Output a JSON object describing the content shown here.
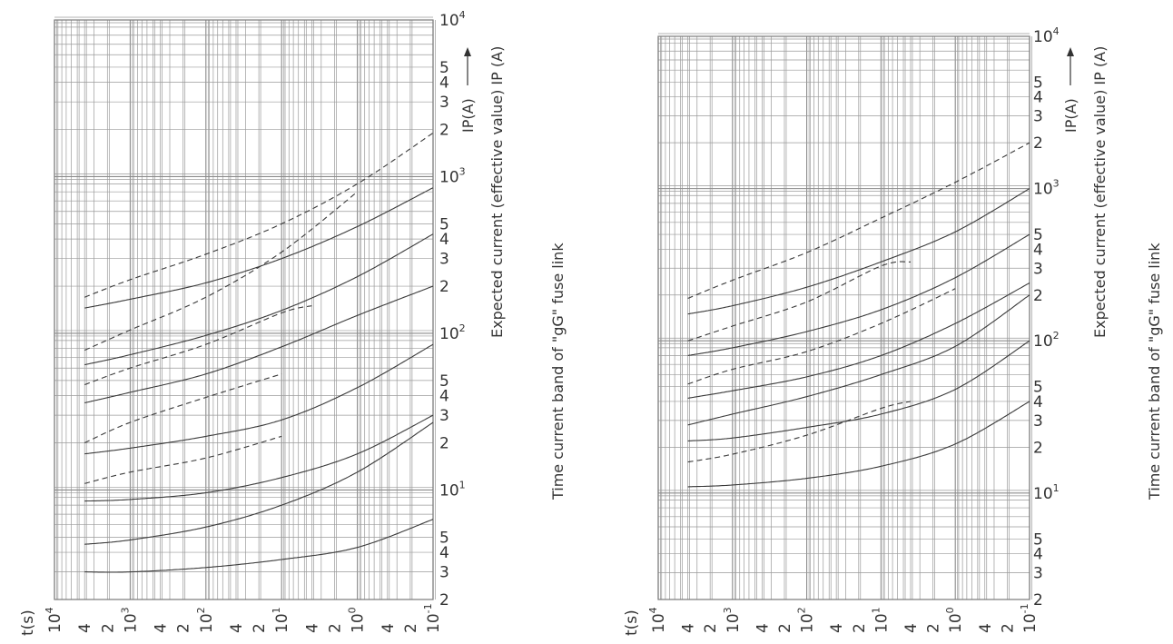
{
  "chart_data": [
    {
      "type": "line",
      "title": "Time current band of \"gG\" fuse link",
      "xlabel": "t(s)",
      "ylabel": "Expected current (effective value) IP (A)",
      "ylabel_arrow": "IP(A)",
      "x_scale": "log",
      "x_reversed": true,
      "xlim": [
        10000,
        0.1
      ],
      "y_scale": "log",
      "ylim": [
        2,
        10000
      ],
      "x_ticks": [
        {
          "v": 10000,
          "m": "10",
          "e": "4"
        },
        {
          "v": 4000,
          "m": "4",
          "e": ""
        },
        {
          "v": 2000,
          "m": "2",
          "e": ""
        },
        {
          "v": 1000,
          "m": "10",
          "e": "3"
        },
        {
          "v": 400,
          "m": "4",
          "e": ""
        },
        {
          "v": 200,
          "m": "2",
          "e": ""
        },
        {
          "v": 100,
          "m": "10",
          "e": "2"
        },
        {
          "v": 40,
          "m": "4",
          "e": ""
        },
        {
          "v": 20,
          "m": "2",
          "e": ""
        },
        {
          "v": 10,
          "m": "10",
          "e": "1"
        },
        {
          "v": 4,
          "m": "4",
          "e": ""
        },
        {
          "v": 2,
          "m": "2",
          "e": ""
        },
        {
          "v": 1,
          "m": "10",
          "e": "0"
        },
        {
          "v": 0.4,
          "m": "4",
          "e": ""
        },
        {
          "v": 0.2,
          "m": "2",
          "e": ""
        },
        {
          "v": 0.1,
          "m": "10",
          "e": "-1"
        }
      ],
      "y_ticks": [
        {
          "v": 10000,
          "m": "10",
          "e": "4"
        },
        {
          "v": 5000,
          "m": "5",
          "e": ""
        },
        {
          "v": 4000,
          "m": "4",
          "e": ""
        },
        {
          "v": 3000,
          "m": "3",
          "e": ""
        },
        {
          "v": 2000,
          "m": "2",
          "e": ""
        },
        {
          "v": 1000,
          "m": "10",
          "e": "3"
        },
        {
          "v": 500,
          "m": "5",
          "e": ""
        },
        {
          "v": 400,
          "m": "4",
          "e": ""
        },
        {
          "v": 300,
          "m": "3",
          "e": ""
        },
        {
          "v": 200,
          "m": "2",
          "e": ""
        },
        {
          "v": 100,
          "m": "10",
          "e": "2"
        },
        {
          "v": 50,
          "m": "5",
          "e": ""
        },
        {
          "v": 40,
          "m": "4",
          "e": ""
        },
        {
          "v": 30,
          "m": "3",
          "e": ""
        },
        {
          "v": 20,
          "m": "2",
          "e": ""
        },
        {
          "v": 10,
          "m": "10",
          "e": "1"
        },
        {
          "v": 5,
          "m": "5",
          "e": ""
        },
        {
          "v": 4,
          "m": "4",
          "e": ""
        },
        {
          "v": 3,
          "m": "3",
          "e": ""
        },
        {
          "v": 2,
          "m": "2",
          "e": ""
        }
      ],
      "series": [
        {
          "style": "dashed",
          "x": [
            4000,
            1000,
            100,
            10,
            1,
            0.1
          ],
          "y": [
            170,
            220,
            320,
            500,
            900,
            1900
          ]
        },
        {
          "style": "solid",
          "x": [
            4000,
            1000,
            100,
            10,
            1,
            0.1
          ],
          "y": [
            145,
            165,
            210,
            300,
            480,
            850
          ]
        },
        {
          "style": "dashed",
          "x": [
            4000,
            1000,
            100,
            10,
            1
          ],
          "y": [
            78,
            105,
            170,
            330,
            800
          ]
        },
        {
          "style": "solid",
          "x": [
            4000,
            1000,
            100,
            10,
            1,
            0.1
          ],
          "y": [
            63,
            73,
            97,
            140,
            230,
            430
          ]
        },
        {
          "style": "dashed",
          "x": [
            4000,
            1000,
            100,
            10,
            4
          ],
          "y": [
            47,
            60,
            85,
            135,
            150
          ]
        },
        {
          "style": "solid",
          "x": [
            4000,
            1000,
            100,
            10,
            1,
            0.1
          ],
          "y": [
            36,
            42,
            55,
            82,
            130,
            200
          ]
        },
        {
          "style": "dashed",
          "x": [
            4000,
            1000,
            100,
            10
          ],
          "y": [
            20,
            27,
            39,
            55
          ]
        },
        {
          "style": "solid",
          "x": [
            4000,
            1000,
            100,
            10,
            1,
            0.1
          ],
          "y": [
            17,
            18.5,
            22,
            28,
            45,
            85
          ]
        },
        {
          "style": "dashed",
          "x": [
            4000,
            1000,
            100,
            10
          ],
          "y": [
            11,
            13,
            16,
            22
          ]
        },
        {
          "style": "solid",
          "x": [
            4000,
            1000,
            100,
            10,
            1,
            0.1
          ],
          "y": [
            8.5,
            8.7,
            9.6,
            12,
            17,
            30
          ]
        },
        {
          "style": "solid",
          "x": [
            4000,
            1000,
            100,
            10,
            1,
            0.1
          ],
          "y": [
            4.5,
            4.8,
            5.8,
            8,
            13,
            27
          ]
        },
        {
          "style": "solid",
          "x": [
            4000,
            1000,
            100,
            10,
            1,
            0.1
          ],
          "y": [
            3,
            3,
            3.2,
            3.6,
            4.3,
            6.5
          ]
        }
      ]
    },
    {
      "type": "line",
      "title": "Time current band of \"gG\" fuse link",
      "xlabel": "t(s)",
      "ylabel": "Expected current (effective value) IP (A)",
      "ylabel_arrow": "IP(A)",
      "x_scale": "log",
      "x_reversed": true,
      "xlim": [
        10000,
        0.1
      ],
      "y_scale": "log",
      "ylim": [
        2,
        10000
      ],
      "x_ticks": [
        {
          "v": 10000,
          "m": "10",
          "e": "4"
        },
        {
          "v": 4000,
          "m": "4",
          "e": ""
        },
        {
          "v": 2000,
          "m": "2",
          "e": ""
        },
        {
          "v": 1000,
          "m": "10",
          "e": "3"
        },
        {
          "v": 400,
          "m": "4",
          "e": ""
        },
        {
          "v": 200,
          "m": "2",
          "e": ""
        },
        {
          "v": 100,
          "m": "10",
          "e": "2"
        },
        {
          "v": 40,
          "m": "4",
          "e": ""
        },
        {
          "v": 20,
          "m": "2",
          "e": ""
        },
        {
          "v": 10,
          "m": "10",
          "e": "1"
        },
        {
          "v": 4,
          "m": "4",
          "e": ""
        },
        {
          "v": 2,
          "m": "2",
          "e": ""
        },
        {
          "v": 1,
          "m": "10",
          "e": "0"
        },
        {
          "v": 0.4,
          "m": "4",
          "e": ""
        },
        {
          "v": 0.2,
          "m": "2",
          "e": ""
        },
        {
          "v": 0.1,
          "m": "10",
          "e": "-1"
        }
      ],
      "y_ticks": [
        {
          "v": 10000,
          "m": "10",
          "e": "4"
        },
        {
          "v": 5000,
          "m": "5",
          "e": ""
        },
        {
          "v": 4000,
          "m": "4",
          "e": ""
        },
        {
          "v": 3000,
          "m": "3",
          "e": ""
        },
        {
          "v": 2000,
          "m": "2",
          "e": ""
        },
        {
          "v": 1000,
          "m": "10",
          "e": "3"
        },
        {
          "v": 500,
          "m": "5",
          "e": ""
        },
        {
          "v": 400,
          "m": "4",
          "e": ""
        },
        {
          "v": 300,
          "m": "3",
          "e": ""
        },
        {
          "v": 200,
          "m": "2",
          "e": ""
        },
        {
          "v": 100,
          "m": "10",
          "e": "2"
        },
        {
          "v": 50,
          "m": "5",
          "e": ""
        },
        {
          "v": 40,
          "m": "4",
          "e": ""
        },
        {
          "v": 30,
          "m": "3",
          "e": ""
        },
        {
          "v": 20,
          "m": "2",
          "e": ""
        },
        {
          "v": 10,
          "m": "10",
          "e": "1"
        },
        {
          "v": 5,
          "m": "5",
          "e": ""
        },
        {
          "v": 4,
          "m": "4",
          "e": ""
        },
        {
          "v": 3,
          "m": "3",
          "e": ""
        },
        {
          "v": 2,
          "m": "2",
          "e": ""
        }
      ],
      "series": [
        {
          "style": "dashed",
          "x": [
            4000,
            1000,
            100,
            10,
            1,
            0.1
          ],
          "y": [
            190,
            250,
            380,
            640,
            1100,
            2000
          ]
        },
        {
          "style": "solid",
          "x": [
            4000,
            1000,
            100,
            10,
            1,
            0.1
          ],
          "y": [
            150,
            170,
            225,
            330,
            520,
            1000
          ]
        },
        {
          "style": "dashed",
          "x": [
            4000,
            1000,
            100,
            10,
            4
          ],
          "y": [
            100,
            125,
            180,
            310,
            330
          ]
        },
        {
          "style": "solid",
          "x": [
            4000,
            1000,
            100,
            10,
            1,
            0.1
          ],
          "y": [
            80,
            90,
            115,
            160,
            260,
            500
          ]
        },
        {
          "style": "dashed",
          "x": [
            4000,
            1000,
            100,
            10,
            1
          ],
          "y": [
            52,
            65,
            85,
            130,
            220
          ]
        },
        {
          "style": "solid",
          "x": [
            4000,
            1000,
            100,
            10,
            1,
            0.1
          ],
          "y": [
            42,
            47,
            58,
            80,
            130,
            240
          ]
        },
        {
          "style": "solid",
          "x": [
            4000,
            1000,
            100,
            10,
            1,
            0.1
          ],
          "y": [
            28,
            33,
            43,
            60,
            92,
            200
          ]
        },
        {
          "style": "solid",
          "x": [
            4000,
            1000,
            100,
            10,
            1,
            0.1
          ],
          "y": [
            22,
            23,
            27,
            33,
            48,
            100
          ]
        },
        {
          "style": "dashed",
          "x": [
            4000,
            1000,
            100,
            10,
            4
          ],
          "y": [
            16,
            18,
            24,
            36,
            40
          ]
        },
        {
          "style": "solid",
          "x": [
            4000,
            1000,
            100,
            10,
            1,
            0.1
          ],
          "y": [
            11,
            11.3,
            12.5,
            15,
            21,
            40
          ]
        }
      ]
    }
  ]
}
